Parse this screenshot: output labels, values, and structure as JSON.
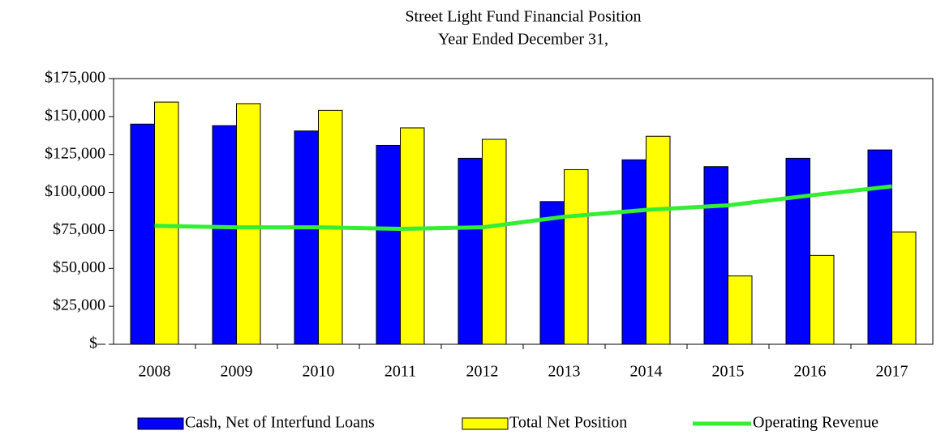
{
  "chart_data": {
    "type": "bar_line",
    "title": "Street Light Fund Financial Position",
    "subtitle": "Year Ended December 31,",
    "categories": [
      "2008",
      "2009",
      "2010",
      "2011",
      "2012",
      "2013",
      "2014",
      "2015",
      "2016",
      "2017"
    ],
    "series": [
      {
        "name": "Cash, Net of Interfund Loans",
        "type": "bar",
        "color": "#0000ff",
        "values": [
          145000,
          144000,
          140500,
          131000,
          122500,
          94000,
          121500,
          117000,
          122500,
          128000
        ]
      },
      {
        "name": "Total Net Position",
        "type": "bar",
        "color": "#ffff00",
        "values": [
          159500,
          158500,
          154000,
          142500,
          135000,
          115000,
          137000,
          45000,
          58500,
          74000
        ]
      },
      {
        "name": "Operating Revenue",
        "type": "line",
        "color": "#33ee33",
        "values": [
          78000,
          77000,
          77000,
          76000,
          77000,
          84000,
          88500,
          91500,
          98000,
          104000
        ]
      }
    ],
    "ylim": [
      0,
      175000
    ],
    "yticks": [
      {
        "value": 0,
        "label": "$–"
      },
      {
        "value": 25000,
        "label": "$25,000"
      },
      {
        "value": 50000,
        "label": "$50,000"
      },
      {
        "value": 75000,
        "label": "$75,000"
      },
      {
        "value": 100000,
        "label": "$100,000"
      },
      {
        "value": 125000,
        "label": "$125,000"
      },
      {
        "value": 150000,
        "label": "$150,000"
      },
      {
        "value": 175000,
        "label": "$175,000"
      }
    ],
    "grid": false,
    "legend": "bottom"
  }
}
